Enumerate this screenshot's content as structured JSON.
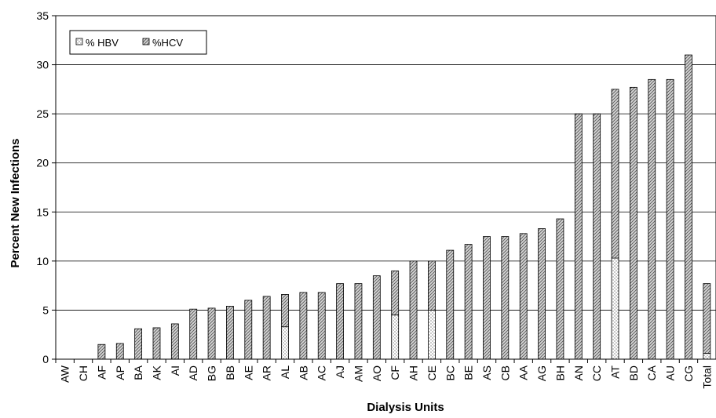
{
  "chart_data": {
    "type": "bar",
    "stacked": true,
    "title": "",
    "xlabel": "Dialysis Units",
    "ylabel": "Percent New Infections",
    "ylim": [
      0,
      35
    ],
    "yticks": [
      "0",
      "5",
      "10",
      "15",
      "20",
      "25",
      "30",
      "35"
    ],
    "grid": true,
    "legend_position": "top-left",
    "categories": [
      "AW",
      "CH",
      "AF",
      "AP",
      "BA",
      "AK",
      "AI",
      "AD",
      "BG",
      "BB",
      "AE",
      "AR",
      "AL",
      "AB",
      "AC",
      "AJ",
      "AM",
      "AO",
      "CF",
      "AH",
      "CE",
      "BC",
      "BE",
      "AS",
      "CB",
      "AA",
      "AG",
      "BH",
      "AN",
      "CC",
      "AT",
      "BD",
      "CA",
      "AU",
      "CG",
      "Total"
    ],
    "series": [
      {
        "name": "% HBV",
        "pattern": "dotted",
        "color": "#ffffff",
        "values": [
          0,
          0,
          0,
          0,
          0,
          0,
          0,
          0,
          0,
          0,
          0,
          0,
          3.3,
          0,
          0,
          0,
          0,
          0,
          4.5,
          0,
          5.0,
          0,
          0,
          0,
          0,
          0,
          0,
          0,
          0,
          0,
          10.3,
          0,
          0,
          0,
          0,
          0.6
        ]
      },
      {
        "name": "%HCV",
        "pattern": "hatched",
        "color": "#c8c8c8",
        "values": [
          0,
          0,
          1.5,
          1.6,
          3.1,
          3.2,
          3.6,
          5.1,
          5.2,
          5.4,
          6.0,
          6.4,
          3.3,
          6.8,
          6.8,
          7.7,
          7.7,
          8.5,
          4.5,
          10.0,
          5.0,
          11.1,
          11.7,
          12.5,
          12.5,
          12.8,
          13.3,
          14.3,
          25.0,
          25.0,
          17.2,
          27.7,
          28.5,
          28.5,
          31.0,
          7.1
        ]
      }
    ]
  }
}
